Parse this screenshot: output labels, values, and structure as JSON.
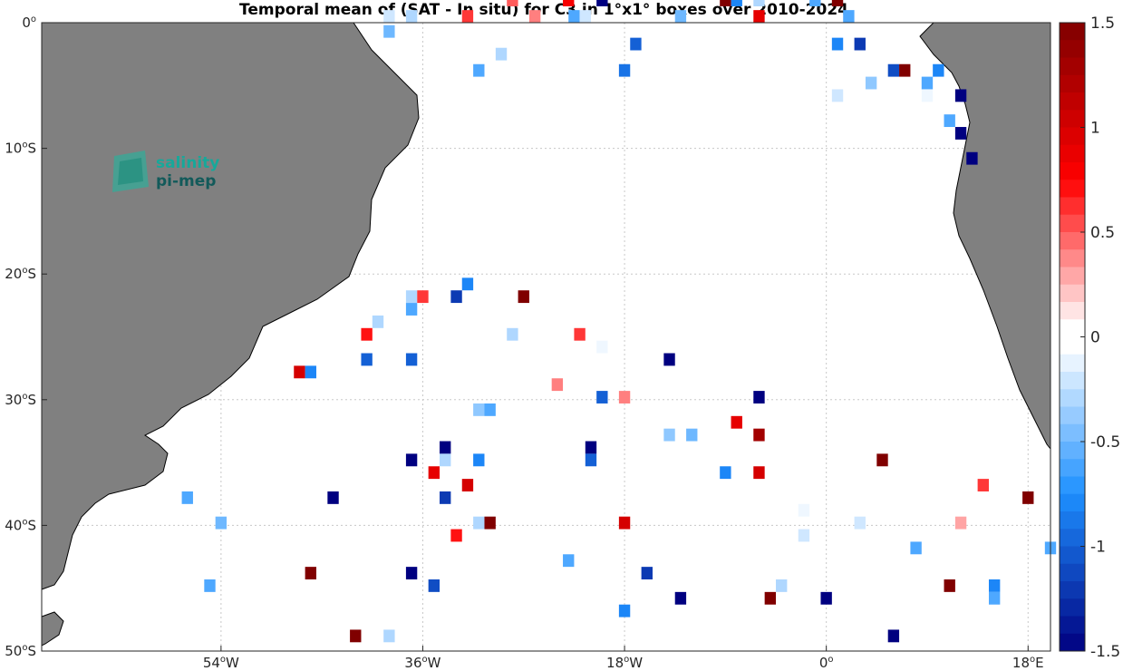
{
  "title": "Temporal mean of (SAT - In situ) for C3 in 1°x1° boxes over 2010-2024",
  "logo": {
    "line1": "salinity",
    "line2": "pi-mep"
  },
  "map": {
    "lon_range": [
      -70,
      20
    ],
    "lat_range": [
      -50,
      0
    ],
    "grid": true,
    "land_color": "#808080",
    "x_ticks": [
      {
        "lon": -54,
        "num": "54",
        "hemi": "W"
      },
      {
        "lon": -36,
        "num": "36",
        "hemi": "W"
      },
      {
        "lon": -18,
        "num": "18",
        "hemi": "W"
      },
      {
        "lon": 0,
        "num": "0",
        "hemi": ""
      },
      {
        "lon": 18,
        "num": "18",
        "hemi": "E"
      }
    ],
    "y_ticks": [
      {
        "lat": 0,
        "num": "0",
        "hemi": ""
      },
      {
        "lat": -10,
        "num": "10",
        "hemi": "S"
      },
      {
        "lat": -20,
        "num": "20",
        "hemi": "S"
      },
      {
        "lat": -30,
        "num": "30",
        "hemi": "S"
      },
      {
        "lat": -40,
        "num": "40",
        "hemi": "S"
      },
      {
        "lat": -50,
        "num": "50",
        "hemi": "S"
      }
    ]
  },
  "colorbar": {
    "range": [
      -1.5,
      1.5
    ],
    "ticks": [
      1.5,
      1,
      0.5,
      0,
      -0.5,
      -1,
      -1.5
    ],
    "tick_labels": [
      "1.5",
      "1",
      "0.5",
      "0",
      "-0.5",
      "-1",
      "-1.5"
    ]
  },
  "boxes": [
    {
      "lon": -39,
      "lat": 0.5,
      "v": -0.2
    },
    {
      "lon": -37,
      "lat": 0.5,
      "v": -0.3
    },
    {
      "lon": -39,
      "lat": -0.7,
      "v": -0.5
    },
    {
      "lon": -32,
      "lat": 0.5,
      "v": 0.6
    },
    {
      "lon": -28,
      "lat": 1.8,
      "v": 0.5
    },
    {
      "lon": -26,
      "lat": 0.5,
      "v": 0.4
    },
    {
      "lon": -23,
      "lat": 1.8,
      "v": 0.8
    },
    {
      "lon": -22.5,
      "lat": 0.5,
      "v": -0.6
    },
    {
      "lon": -21.5,
      "lat": 0.5,
      "v": -0.2
    },
    {
      "lon": -20,
      "lat": 1.8,
      "v": -1.5
    },
    {
      "lon": -29,
      "lat": -2.5,
      "v": -0.3
    },
    {
      "lon": -31,
      "lat": -3.8,
      "v": -0.6
    },
    {
      "lon": -18,
      "lat": -3.8,
      "v": -0.9
    },
    {
      "lon": -17,
      "lat": -1.7,
      "v": -1.0
    },
    {
      "lon": -13,
      "lat": 0.5,
      "v": -0.5
    },
    {
      "lon": -9,
      "lat": 1.8,
      "v": 1.5
    },
    {
      "lon": -8,
      "lat": 1.8,
      "v": -0.8
    },
    {
      "lon": -6,
      "lat": 1.8,
      "v": -0.3
    },
    {
      "lon": -6,
      "lat": 0.5,
      "v": 0.9
    },
    {
      "lon": -1,
      "lat": 1.8,
      "v": -0.6
    },
    {
      "lon": 1,
      "lat": 1.8,
      "v": 1.5
    },
    {
      "lon": 2,
      "lat": 0.5,
      "v": -0.6
    },
    {
      "lon": 1,
      "lat": -1.7,
      "v": -0.8
    },
    {
      "lon": 3,
      "lat": -1.7,
      "v": -1.2
    },
    {
      "lon": 1,
      "lat": -5.8,
      "v": -0.2
    },
    {
      "lon": 4,
      "lat": -4.8,
      "v": -0.4
    },
    {
      "lon": 6,
      "lat": -3.8,
      "v": -1.1
    },
    {
      "lon": 7,
      "lat": -3.8,
      "v": 1.5
    },
    {
      "lon": 9,
      "lat": -4.8,
      "v": -0.6
    },
    {
      "lon": 10,
      "lat": -3.8,
      "v": -0.8
    },
    {
      "lon": 9,
      "lat": -5.8,
      "v": -0.1
    },
    {
      "lon": 12,
      "lat": -5.8,
      "v": -1.5
    },
    {
      "lon": 11,
      "lat": -7.8,
      "v": -0.6
    },
    {
      "lon": 12,
      "lat": -8.8,
      "v": -1.5
    },
    {
      "lon": 13,
      "lat": -10.8,
      "v": -1.5
    },
    {
      "lon": -32,
      "lat": -20.8,
      "v": -0.8
    },
    {
      "lon": -33,
      "lat": -21.8,
      "v": -1.2
    },
    {
      "lon": -27,
      "lat": -21.8,
      "v": 1.5
    },
    {
      "lon": -37,
      "lat": -21.8,
      "v": -0.3
    },
    {
      "lon": -36,
      "lat": -21.8,
      "v": 0.6
    },
    {
      "lon": -37,
      "lat": -22.8,
      "v": -0.6
    },
    {
      "lon": -40,
      "lat": -23.8,
      "v": -0.3
    },
    {
      "lon": -41,
      "lat": -24.8,
      "v": 0.7
    },
    {
      "lon": -28,
      "lat": -24.8,
      "v": -0.3
    },
    {
      "lon": -22,
      "lat": -24.8,
      "v": 0.6
    },
    {
      "lon": -20,
      "lat": -25.8,
      "v": -0.1
    },
    {
      "lon": -41,
      "lat": -26.8,
      "v": -1.0
    },
    {
      "lon": -37,
      "lat": -26.8,
      "v": -1.0
    },
    {
      "lon": -14,
      "lat": -26.8,
      "v": -1.5
    },
    {
      "lon": -47,
      "lat": -27.8,
      "v": 1.0
    },
    {
      "lon": -46,
      "lat": -27.8,
      "v": -0.8
    },
    {
      "lon": -24,
      "lat": -28.8,
      "v": 0.4
    },
    {
      "lon": -20,
      "lat": -29.8,
      "v": -1.0
    },
    {
      "lon": -18,
      "lat": -29.8,
      "v": 0.4
    },
    {
      "lon": -6,
      "lat": -29.8,
      "v": -1.5
    },
    {
      "lon": -31,
      "lat": -30.8,
      "v": -0.4
    },
    {
      "lon": -30,
      "lat": -30.8,
      "v": -0.6
    },
    {
      "lon": -8,
      "lat": -31.8,
      "v": 0.9
    },
    {
      "lon": -14,
      "lat": -32.8,
      "v": -0.4
    },
    {
      "lon": -12,
      "lat": -32.8,
      "v": -0.5
    },
    {
      "lon": -6,
      "lat": -32.8,
      "v": 1.3
    },
    {
      "lon": -34,
      "lat": -33.8,
      "v": -1.5
    },
    {
      "lon": -21,
      "lat": -33.8,
      "v": -1.5
    },
    {
      "lon": -37,
      "lat": -34.8,
      "v": -1.5
    },
    {
      "lon": -34,
      "lat": -34.8,
      "v": -0.3
    },
    {
      "lon": -31,
      "lat": -34.8,
      "v": -0.8
    },
    {
      "lon": -21,
      "lat": -34.8,
      "v": -1.0
    },
    {
      "lon": 5,
      "lat": -34.8,
      "v": 1.5
    },
    {
      "lon": -35,
      "lat": -35.8,
      "v": 0.9
    },
    {
      "lon": -9,
      "lat": -35.8,
      "v": -0.8
    },
    {
      "lon": -6,
      "lat": -35.8,
      "v": 1.0
    },
    {
      "lon": -32,
      "lat": -36.8,
      "v": 1.0
    },
    {
      "lon": 14,
      "lat": -36.8,
      "v": 0.6
    },
    {
      "lon": -57,
      "lat": -37.8,
      "v": -0.6
    },
    {
      "lon": -44,
      "lat": -37.8,
      "v": -1.5
    },
    {
      "lon": -34,
      "lat": -37.8,
      "v": -1.2
    },
    {
      "lon": 18,
      "lat": -37.8,
      "v": 1.5
    },
    {
      "lon": -2,
      "lat": -38.8,
      "v": -0.1
    },
    {
      "lon": -54,
      "lat": -39.8,
      "v": -0.5
    },
    {
      "lon": -31,
      "lat": -39.8,
      "v": -0.3
    },
    {
      "lon": -30,
      "lat": -39.8,
      "v": 1.5
    },
    {
      "lon": -18,
      "lat": -39.8,
      "v": 1.0
    },
    {
      "lon": 3,
      "lat": -39.8,
      "v": -0.2
    },
    {
      "lon": 12,
      "lat": -39.8,
      "v": 0.3
    },
    {
      "lon": -2,
      "lat": -40.8,
      "v": -0.2
    },
    {
      "lon": -33,
      "lat": -40.8,
      "v": 0.7
    },
    {
      "lon": 8,
      "lat": -41.8,
      "v": -0.6
    },
    {
      "lon": 20,
      "lat": -41.8,
      "v": -0.6
    },
    {
      "lon": -23,
      "lat": -42.8,
      "v": -0.6
    },
    {
      "lon": -46,
      "lat": -43.8,
      "v": 1.5
    },
    {
      "lon": -37,
      "lat": -43.8,
      "v": -1.5
    },
    {
      "lon": -16,
      "lat": -43.8,
      "v": -1.2
    },
    {
      "lon": -55,
      "lat": -44.8,
      "v": -0.6
    },
    {
      "lon": -35,
      "lat": -44.8,
      "v": -1.1
    },
    {
      "lon": -4,
      "lat": -44.8,
      "v": -0.3
    },
    {
      "lon": 11,
      "lat": -44.8,
      "v": 1.5
    },
    {
      "lon": 15,
      "lat": -44.8,
      "v": -0.8
    },
    {
      "lon": 15,
      "lat": -45.8,
      "v": -0.6
    },
    {
      "lon": -13,
      "lat": -45.8,
      "v": -1.5
    },
    {
      "lon": -5,
      "lat": -45.8,
      "v": 1.5
    },
    {
      "lon": 0,
      "lat": -45.8,
      "v": -1.5
    },
    {
      "lon": -18,
      "lat": -46.8,
      "v": -0.8
    },
    {
      "lon": -42,
      "lat": -48.8,
      "v": 1.5
    },
    {
      "lon": -39,
      "lat": -48.8,
      "v": -0.3
    },
    {
      "lon": 6,
      "lat": -48.8,
      "v": -1.5
    }
  ]
}
